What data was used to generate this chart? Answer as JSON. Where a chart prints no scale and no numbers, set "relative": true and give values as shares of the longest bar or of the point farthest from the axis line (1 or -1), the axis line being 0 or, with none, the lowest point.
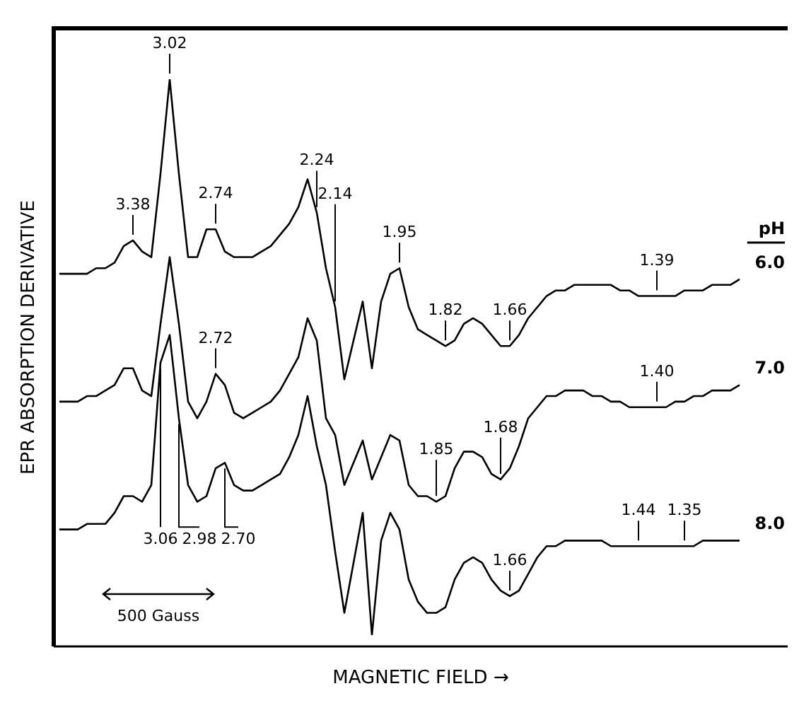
{
  "chart_data": {
    "type": "line",
    "relative": true,
    "xlabel": "MAGNETIC FIELD →",
    "ylabel": "EPR ABSORPTION DERIVATIVE",
    "legend_title": "pH",
    "legend": "right",
    "marker": "none",
    "line_style": "solid",
    "annotations": [
      "500 Gauss",
      "3.38",
      "3.02",
      "2.74",
      "2.24",
      "2.14",
      "1.95",
      "1.82",
      "1.66",
      "1.39",
      "2.72",
      "1.85",
      "1.68",
      "1.40",
      "3.06",
      "2.98",
      "2.70",
      "1.66",
      "1.44",
      "1.35"
    ],
    "categories": [
      null,
      null,
      null,
      null,
      null,
      null,
      null,
      null,
      null,
      null,
      null,
      null,
      null,
      null,
      null,
      null,
      null,
      null,
      null,
      null,
      null,
      null,
      null,
      null,
      null,
      null,
      null,
      null,
      null,
      null,
      null,
      null,
      null,
      null,
      null,
      null,
      null,
      null,
      null,
      null,
      null,
      null,
      null,
      null,
      null,
      null,
      null,
      null,
      null,
      null,
      null,
      null,
      null,
      null,
      null,
      null,
      null,
      null,
      null,
      null,
      null,
      null,
      null,
      null,
      null,
      null,
      null,
      null,
      null,
      null,
      null,
      null,
      null,
      null,
      null
    ],
    "series": [
      {
        "name": "6.0",
        "color": "#000000",
        "values": [
          0.65,
          0.65,
          0.65,
          0.65,
          0.66,
          0.66,
          0.67,
          0.7,
          0.71,
          0.69,
          0.68,
          0.83,
          1.0,
          0.83,
          0.68,
          0.68,
          0.73,
          0.73,
          0.69,
          0.68,
          0.68,
          0.68,
          0.69,
          0.7,
          0.72,
          0.74,
          0.77,
          0.82,
          0.76,
          0.66,
          0.59,
          0.46,
          0.53,
          0.6,
          0.48,
          0.6,
          0.65,
          0.66,
          0.59,
          0.55,
          0.54,
          0.53,
          0.52,
          0.53,
          0.56,
          0.57,
          0.56,
          0.54,
          0.52,
          0.52,
          0.54,
          0.57,
          0.59,
          0.61,
          0.62,
          0.62,
          0.63,
          0.63,
          0.63,
          0.63,
          0.63,
          0.62,
          0.62,
          0.61,
          0.61,
          0.61,
          0.61,
          0.61,
          0.62,
          0.62,
          0.62,
          0.63,
          0.63,
          0.63,
          0.64
        ]
      },
      {
        "name": "7.0",
        "color": "#000000",
        "values": [
          0.42,
          0.42,
          0.42,
          0.43,
          0.43,
          0.44,
          0.45,
          0.48,
          0.48,
          0.44,
          0.43,
          0.56,
          0.68,
          0.56,
          0.42,
          0.39,
          0.42,
          0.47,
          0.45,
          0.4,
          0.39,
          0.4,
          0.41,
          0.42,
          0.44,
          0.47,
          0.5,
          0.57,
          0.53,
          0.39,
          0.36,
          0.27,
          0.31,
          0.35,
          0.28,
          0.32,
          0.36,
          0.35,
          0.27,
          0.25,
          0.25,
          0.24,
          0.25,
          0.3,
          0.33,
          0.33,
          0.32,
          0.29,
          0.28,
          0.3,
          0.34,
          0.39,
          0.41,
          0.43,
          0.43,
          0.44,
          0.44,
          0.44,
          0.43,
          0.43,
          0.42,
          0.42,
          0.41,
          0.41,
          0.41,
          0.41,
          0.41,
          0.42,
          0.42,
          0.43,
          0.43,
          0.44,
          0.44,
          0.44,
          0.45
        ]
      },
      {
        "name": "8.0",
        "color": "#000000",
        "values": [
          0.19,
          0.19,
          0.19,
          0.2,
          0.2,
          0.2,
          0.22,
          0.25,
          0.25,
          0.24,
          0.27,
          0.49,
          0.54,
          0.39,
          0.27,
          0.24,
          0.25,
          0.3,
          0.31,
          0.27,
          0.26,
          0.26,
          0.27,
          0.28,
          0.29,
          0.32,
          0.36,
          0.43,
          0.34,
          0.27,
          0.15,
          0.04,
          0.13,
          0.22,
          0.0,
          0.17,
          0.22,
          0.19,
          0.1,
          0.06,
          0.04,
          0.04,
          0.05,
          0.1,
          0.13,
          0.14,
          0.13,
          0.1,
          0.08,
          0.07,
          0.08,
          0.11,
          0.14,
          0.16,
          0.16,
          0.17,
          0.17,
          0.17,
          0.17,
          0.17,
          0.16,
          0.16,
          0.16,
          0.16,
          0.16,
          0.16,
          0.16,
          0.16,
          0.16,
          0.16,
          0.17,
          0.17,
          0.17,
          0.17,
          0.17
        ]
      }
    ]
  }
}
